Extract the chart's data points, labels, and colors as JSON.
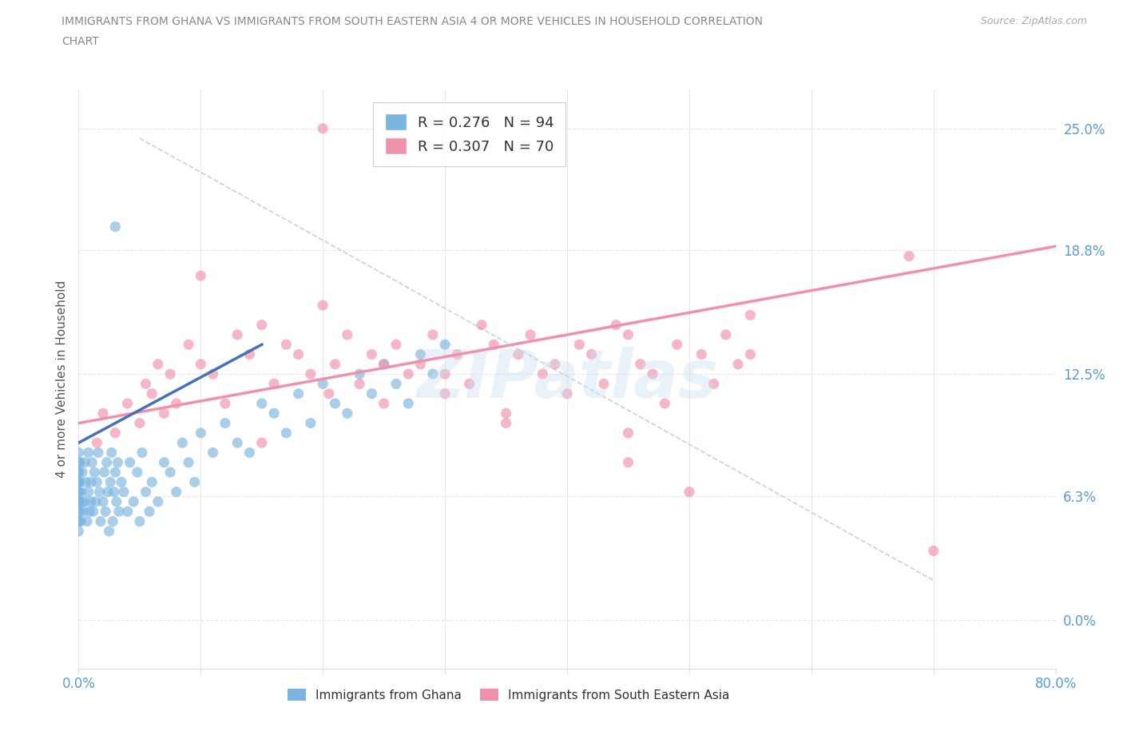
{
  "title_line1": "IMMIGRANTS FROM GHANA VS IMMIGRANTS FROM SOUTH EASTERN ASIA 4 OR MORE VEHICLES IN HOUSEHOLD CORRELATION",
  "title_line2": "CHART",
  "source": "Source: ZipAtlas.com",
  "ghana_color": "#7ab4e0",
  "sea_color": "#f090aa",
  "trend_ghana_color": "#4472b8",
  "trend_sea_color": "#e06080",
  "dash_color": "#b0c8e8",
  "ghana_R": "0.276",
  "ghana_N": "94",
  "sea_R": "0.307",
  "sea_N": "70",
  "xmin": 0.0,
  "xmax": 80.0,
  "ymin": -2.5,
  "ymax": 27.0,
  "yticks": [
    0.0,
    6.3,
    12.5,
    18.8,
    25.0
  ],
  "ytick_labels": [
    "0.0%",
    "6.3%",
    "12.5%",
    "18.8%",
    "25.0%"
  ],
  "ylabel": "4 or more Vehicles in Household",
  "watermark": "ZIPatlas",
  "grid_color": "#e8e8e8",
  "tick_color": "#5b9bd5",
  "legend_label_ghana": "Immigrants from Ghana",
  "legend_label_sea": "Immigrants from South Eastern Asia",
  "title_color": "#888888",
  "source_color": "#aaaaaa",
  "ghana_x": [
    0.0,
    0.0,
    0.0,
    0.0,
    0.0,
    0.0,
    0.0,
    0.0,
    0.0,
    0.0,
    0.0,
    0.0,
    0.0,
    0.0,
    0.0,
    0.1,
    0.1,
    0.1,
    0.2,
    0.2,
    0.3,
    0.3,
    0.4,
    0.5,
    0.5,
    0.6,
    0.7,
    0.8,
    0.8,
    0.9,
    1.0,
    1.0,
    1.1,
    1.2,
    1.3,
    1.4,
    1.5,
    1.6,
    1.7,
    1.8,
    2.0,
    2.1,
    2.2,
    2.3,
    2.4,
    2.5,
    2.6,
    2.7,
    2.8,
    2.9,
    3.0,
    3.1,
    3.2,
    3.3,
    3.5,
    3.7,
    4.0,
    4.2,
    4.5,
    4.8,
    5.0,
    5.2,
    5.5,
    5.8,
    6.0,
    6.5,
    7.0,
    7.5,
    8.0,
    8.5,
    9.0,
    9.5,
    10.0,
    11.0,
    12.0,
    13.0,
    14.0,
    15.0,
    16.0,
    17.0,
    18.0,
    19.0,
    20.0,
    21.0,
    22.0,
    23.0,
    24.0,
    25.0,
    26.0,
    27.0,
    28.0,
    29.0,
    30.0,
    3.0
  ],
  "ghana_y": [
    6.0,
    7.0,
    5.5,
    8.0,
    6.5,
    7.5,
    5.0,
    8.5,
    6.0,
    7.0,
    4.5,
    6.5,
    5.0,
    7.5,
    6.0,
    5.5,
    7.0,
    8.0,
    6.5,
    5.0,
    6.0,
    7.5,
    5.5,
    8.0,
    6.0,
    7.0,
    5.0,
    6.5,
    8.5,
    5.5,
    7.0,
    6.0,
    8.0,
    5.5,
    7.5,
    6.0,
    7.0,
    8.5,
    6.5,
    5.0,
    6.0,
    7.5,
    5.5,
    8.0,
    6.5,
    4.5,
    7.0,
    8.5,
    5.0,
    6.5,
    7.5,
    6.0,
    8.0,
    5.5,
    7.0,
    6.5,
    5.5,
    8.0,
    6.0,
    7.5,
    5.0,
    8.5,
    6.5,
    5.5,
    7.0,
    6.0,
    8.0,
    7.5,
    6.5,
    9.0,
    8.0,
    7.0,
    9.5,
    8.5,
    10.0,
    9.0,
    8.5,
    11.0,
    10.5,
    9.5,
    11.5,
    10.0,
    12.0,
    11.0,
    10.5,
    12.5,
    11.5,
    13.0,
    12.0,
    11.0,
    13.5,
    12.5,
    14.0,
    20.0
  ],
  "sea_x": [
    1.5,
    2.0,
    3.0,
    4.0,
    5.0,
    5.5,
    6.0,
    6.5,
    7.0,
    7.5,
    8.0,
    9.0,
    10.0,
    11.0,
    12.0,
    13.0,
    14.0,
    15.0,
    16.0,
    17.0,
    18.0,
    19.0,
    20.0,
    20.5,
    21.0,
    22.0,
    23.0,
    24.0,
    25.0,
    26.0,
    27.0,
    28.0,
    29.0,
    30.0,
    31.0,
    32.0,
    33.0,
    34.0,
    35.0,
    36.0,
    37.0,
    38.0,
    39.0,
    40.0,
    41.0,
    42.0,
    43.0,
    44.0,
    45.0,
    46.0,
    47.0,
    48.0,
    49.0,
    50.0,
    51.0,
    52.0,
    53.0,
    54.0,
    55.0,
    45.0,
    30.0,
    35.0,
    25.0,
    20.0,
    15.0,
    10.0,
    68.0,
    55.0,
    45.0,
    70.0
  ],
  "sea_y": [
    9.0,
    10.5,
    9.5,
    11.0,
    10.0,
    12.0,
    11.5,
    13.0,
    10.5,
    12.5,
    11.0,
    14.0,
    13.0,
    12.5,
    11.0,
    14.5,
    13.5,
    9.0,
    12.0,
    14.0,
    13.5,
    12.5,
    25.0,
    11.5,
    13.0,
    14.5,
    12.0,
    13.5,
    11.0,
    14.0,
    12.5,
    13.0,
    14.5,
    11.5,
    13.5,
    12.0,
    15.0,
    14.0,
    10.0,
    13.5,
    14.5,
    12.5,
    13.0,
    11.5,
    14.0,
    13.5,
    12.0,
    15.0,
    14.5,
    13.0,
    12.5,
    11.0,
    14.0,
    6.5,
    13.5,
    12.0,
    14.5,
    13.0,
    15.5,
    9.5,
    12.5,
    10.5,
    13.0,
    16.0,
    15.0,
    17.5,
    18.5,
    13.5,
    8.0,
    3.5
  ],
  "sea_trend_x0": 0.0,
  "sea_trend_x1": 80.0,
  "sea_trend_y0": 10.0,
  "sea_trend_y1": 19.0,
  "ghana_trend_x0": 0.0,
  "ghana_trend_x1": 15.0,
  "ghana_trend_y0": 9.0,
  "ghana_trend_y1": 14.0,
  "dash_x0": 5.0,
  "dash_y0": 24.5,
  "dash_x1": 70.0,
  "dash_y1": 2.0
}
